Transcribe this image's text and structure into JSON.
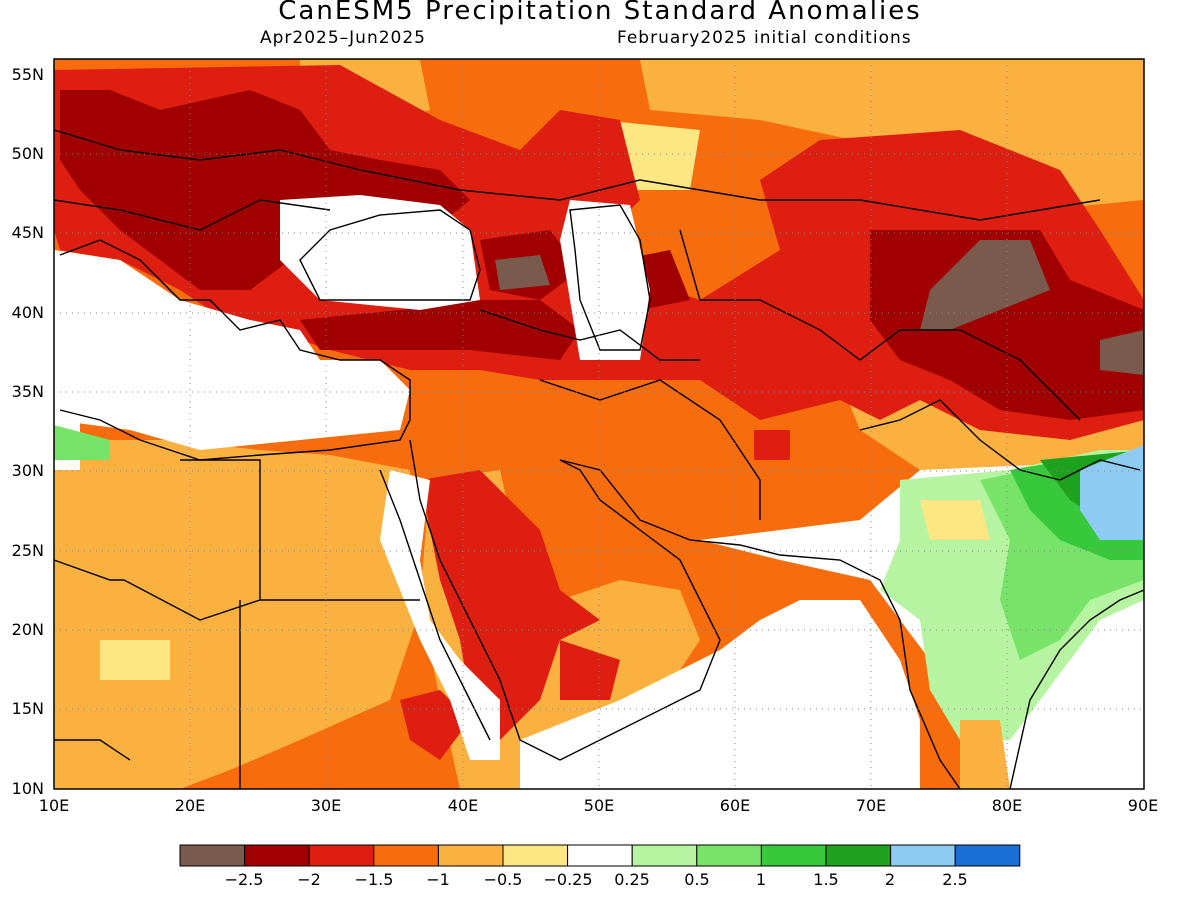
{
  "header": {
    "title": "CanESM5 Precipitation Standard Anomalies",
    "period": "Apr2025–Jun2025",
    "init": "February2025 initial conditions"
  },
  "axes": {
    "lat_labels": [
      "55N",
      "50N",
      "45N",
      "40N",
      "35N",
      "30N",
      "25N",
      "20N",
      "15N",
      "10N"
    ],
    "lon_labels": [
      "10E",
      "20E",
      "30E",
      "40E",
      "50E",
      "60E",
      "70E",
      "80E",
      "90E"
    ]
  },
  "colorbar": {
    "colors": [
      "#7a5a4d",
      "#a00000",
      "#dd1e10",
      "#f76c0c",
      "#fbb13f",
      "#fde782",
      "#ffffff",
      "#b6f4a1",
      "#77e469",
      "#38c83b",
      "#1ea11e",
      "#8ecbf2",
      "#1a6ed6"
    ],
    "labels": [
      "−2.5",
      "−2",
      "−1.5",
      "−1",
      "−0.5",
      "−0.25",
      "0.25",
      "0.5",
      "1",
      "1.5",
      "2",
      "2.5"
    ]
  }
}
